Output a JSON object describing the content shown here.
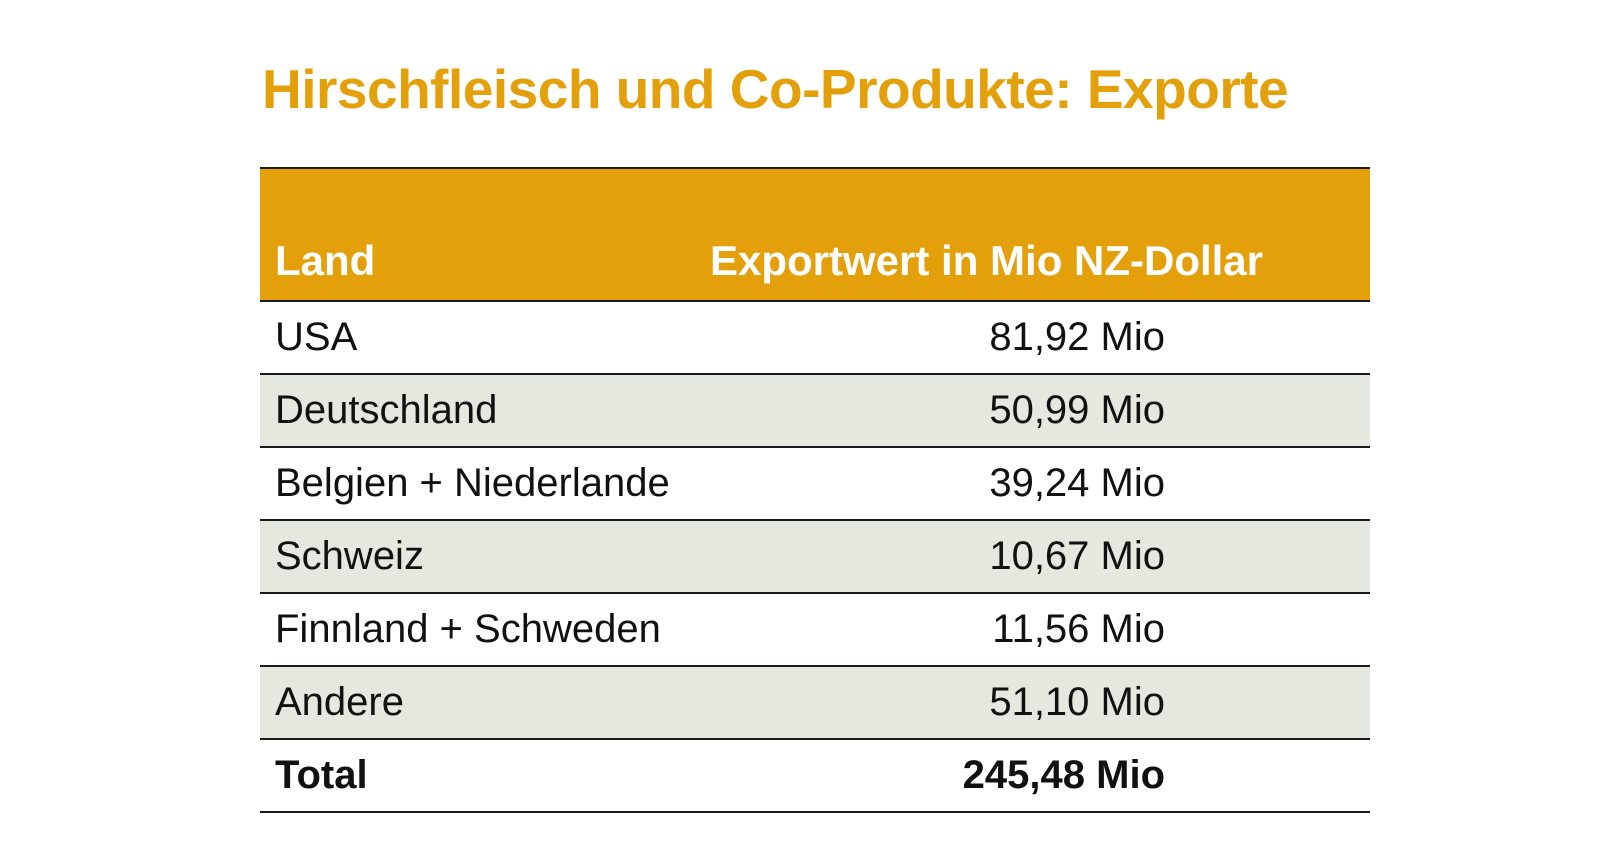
{
  "title": "Hirschfleisch und Co-Produkte: Exporte",
  "table": {
    "headers": {
      "land": "Land",
      "value": "Exportwert in Mio NZ-Dollar"
    },
    "rows": [
      {
        "land": "USA",
        "value": "81,92 Mio"
      },
      {
        "land": "Deutschland",
        "value": "50,99 Mio"
      },
      {
        "land": "Belgien + Niederlande",
        "value": "39,24 Mio"
      },
      {
        "land": "Schweiz",
        "value": "10,67 Mio"
      },
      {
        "land": "Finnland + Schweden",
        "value": "11,56 Mio"
      },
      {
        "land": "Andere",
        "value": "51,10 Mio"
      }
    ],
    "total": {
      "land": "Total",
      "value": "245,48 Mio"
    }
  },
  "colors": {
    "accent": "#e3a00b",
    "row_shade": "#e4e8df",
    "rule": "#1a1a1a"
  }
}
